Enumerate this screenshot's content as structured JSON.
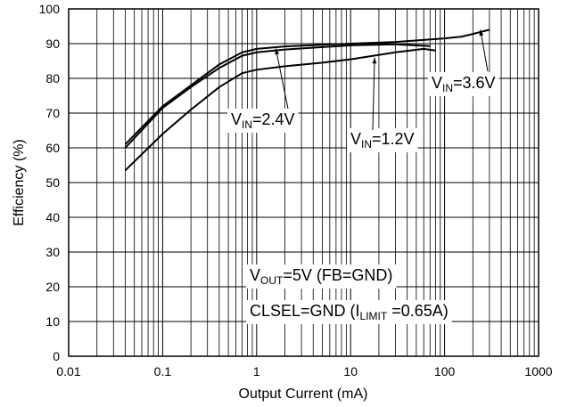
{
  "chart_data": {
    "type": "line",
    "x_scale": "log",
    "xlim": [
      0.01,
      1000
    ],
    "ylim": [
      0,
      100
    ],
    "xlabel": "Output Current (mA)",
    "ylabel": "Efficiency (%)",
    "x_ticks": [
      "0.01",
      "0.1",
      "1",
      "10",
      "100",
      "1000"
    ],
    "y_ticks": [
      "0",
      "10",
      "20",
      "30",
      "40",
      "50",
      "60",
      "70",
      "80",
      "90",
      "100"
    ],
    "grid": true,
    "series": [
      {
        "name": "VIN=3.6V",
        "label_main": "V",
        "label_sub": "IN",
        "label_tail": "=3.6V",
        "x": [
          0.04,
          0.1,
          0.2,
          0.4,
          0.7,
          1,
          2,
          5,
          10,
          30,
          100,
          150,
          200,
          300
        ],
        "y": [
          61,
          72,
          78,
          84,
          87.5,
          88.5,
          89.2,
          89.7,
          90,
          90.5,
          91.5,
          92,
          92.8,
          94
        ]
      },
      {
        "name": "VIN=2.4V",
        "label_main": "V",
        "label_sub": "IN",
        "label_tail": "=2.4V",
        "x": [
          0.04,
          0.1,
          0.2,
          0.4,
          0.7,
          1,
          2,
          5,
          10,
          30,
          70
        ],
        "y": [
          60,
          71.5,
          77.5,
          83,
          86.5,
          87.5,
          88.3,
          89,
          89.5,
          89.8,
          89.3
        ]
      },
      {
        "name": "VIN=1.2V",
        "label_main": "V",
        "label_sub": "IN",
        "label_tail": "=1.2V",
        "x": [
          0.04,
          0.1,
          0.2,
          0.4,
          0.7,
          1,
          2,
          5,
          10,
          30,
          60,
          80
        ],
        "y": [
          53.5,
          64,
          71,
          77.5,
          81.5,
          82.5,
          83.5,
          84.5,
          85.5,
          87.5,
          88.5,
          88
        ]
      }
    ],
    "annotations": [
      {
        "main": "V",
        "sub": "OUT",
        "tail": "=5V (FB=GND)"
      },
      {
        "main": "CLSEL=GND (I",
        "sub": "LIMIT",
        "tail": " =0.65A)"
      }
    ]
  }
}
